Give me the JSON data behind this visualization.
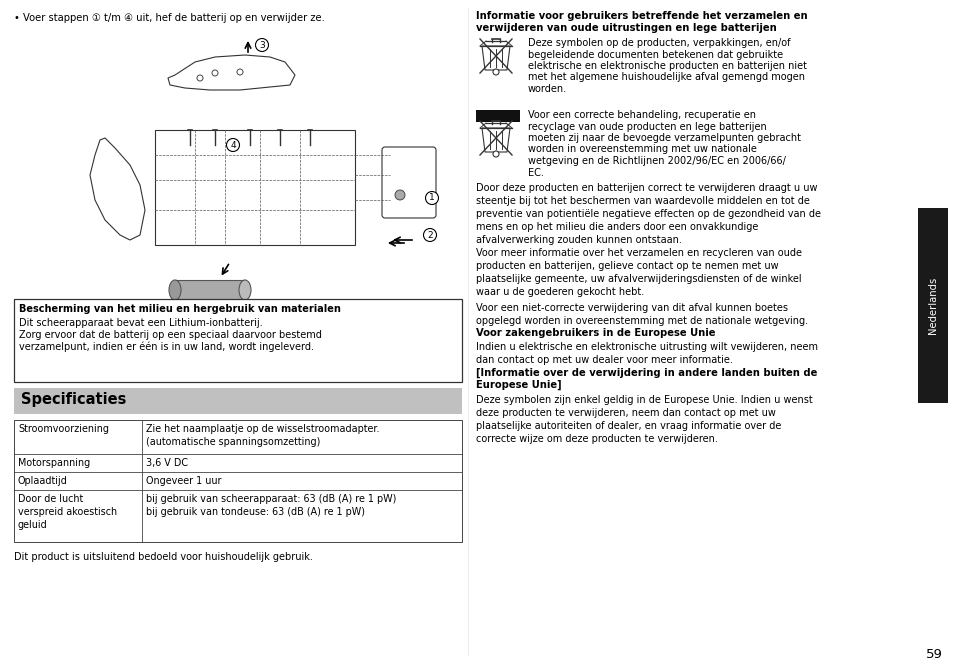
{
  "page_bg": "#ffffff",
  "sidebar_color": "#1a1a1a",
  "sidebar_text": "Nederlands",
  "page_number": "59",
  "bullet_text": "• Voer stappen ① t/m ④ uit, hef de batterij op en verwijder ze.",
  "box1_bold": "Bescherming van het milieu en hergebruik van materialen",
  "box1_line1": "Dit scheerapparaat bevat een Lithium-ionbatterij.",
  "box1_line2": "Zorg ervoor dat de batterij op een speciaal daarvoor bestemd",
  "box1_line3": "verzamelpunt, indien er één is in uw land, wordt ingeleverd.",
  "spec_header": "Specificaties",
  "spec_header_bg": "#c0c0c0",
  "table_rows_left": [
    "Stroomvoorziening",
    "Motorspanning",
    "Oplaadtijd",
    "Door de lucht\nverspreid akoestisch\ngeluid"
  ],
  "table_rows_right": [
    "Zie het naamplaatje op de wisselstroomadapter.\n(automatische spanningsomzetting)",
    "3,6 V DC",
    "Ongeveer 1 uur",
    "bij gebruik van scheerapparaat: 63 (dB (A) re 1 pW)\nbij gebruik van tondeuse: 63 (dB (A) re 1 pW)"
  ],
  "footer_text": "Dit product is uitsluitend bedoeld voor huishoudelijk gebruik.",
  "right_title_line1": "Informatie voor gebruikers betreffende het verzamelen en",
  "right_title_line2": "verwijderen van oude uitrustingen en lege batterijen",
  "right_para1_line1": "Deze symbolen op de producten, verpakkingen, en/of",
  "right_para1_line2": "begeleidende documenten betekenen dat gebruikte",
  "right_para1_line3": "elektrische en elektronische producten en batterijen niet",
  "right_para1_line4": "met het algemene huishoudelijke afval gemengd mogen",
  "right_para1_line5": "worden.",
  "right_para2_line1": "Voor een correcte behandeling, recuperatie en",
  "right_para2_line2": "recyclage van oude producten en lege batterijen",
  "right_para2_line3": "moeten zij naar de bevoegde verzamelpunten gebracht",
  "right_para2_line4": "worden in overeenstemming met uw nationale",
  "right_para2_line5": "wetgeving en de Richtlijnen 2002/96/EC en 2006/66/",
  "right_para2_line6": "EC.",
  "right_para3": "Door deze producten en batterijen correct te verwijderen draagt u uw\nsteentje bij tot het beschermen van waardevolle middelen en tot de\npreventie van potientiële negatieve effecten op de gezondheid van de\nmens en op het milieu die anders door een onvakkundige\nafvalverwerking zouden kunnen ontstaan.",
  "right_para4": "Voor meer informatie over het verzamelen en recycleren van oude\nproducten en batterijen, gelieve contact op te nemen met uw\nplaatselijke gemeente, uw afvalverwijderingsdiensten of de winkel\nwaar u de goederen gekocht hebt.",
  "right_para5": "Voor een niet-correcte verwijdering van dit afval kunnen boetes\nopgelegd worden in overeenstemming met de nationale wetgeving.",
  "right_bold2": "Voor zakengebruikers in de Europese Unie",
  "right_para6": "Indien u elektrische en elektronische uitrusting wilt vewijderen, neem\ndan contact op met uw dealer voor meer informatie.",
  "right_bold3_line1": "[Informatie over de verwijdering in andere landen buiten de",
  "right_bold3_line2": "Europese Unie]",
  "right_para7": "Deze symbolen zijn enkel geldig in de Europese Unie. Indien u wenst\ndeze producten te verwijderen, neem dan contact op met uw\nplaatselijke autoriteiten of dealer, en vraag informatie over de\ncorrecte wijze om deze producten te verwijderen."
}
